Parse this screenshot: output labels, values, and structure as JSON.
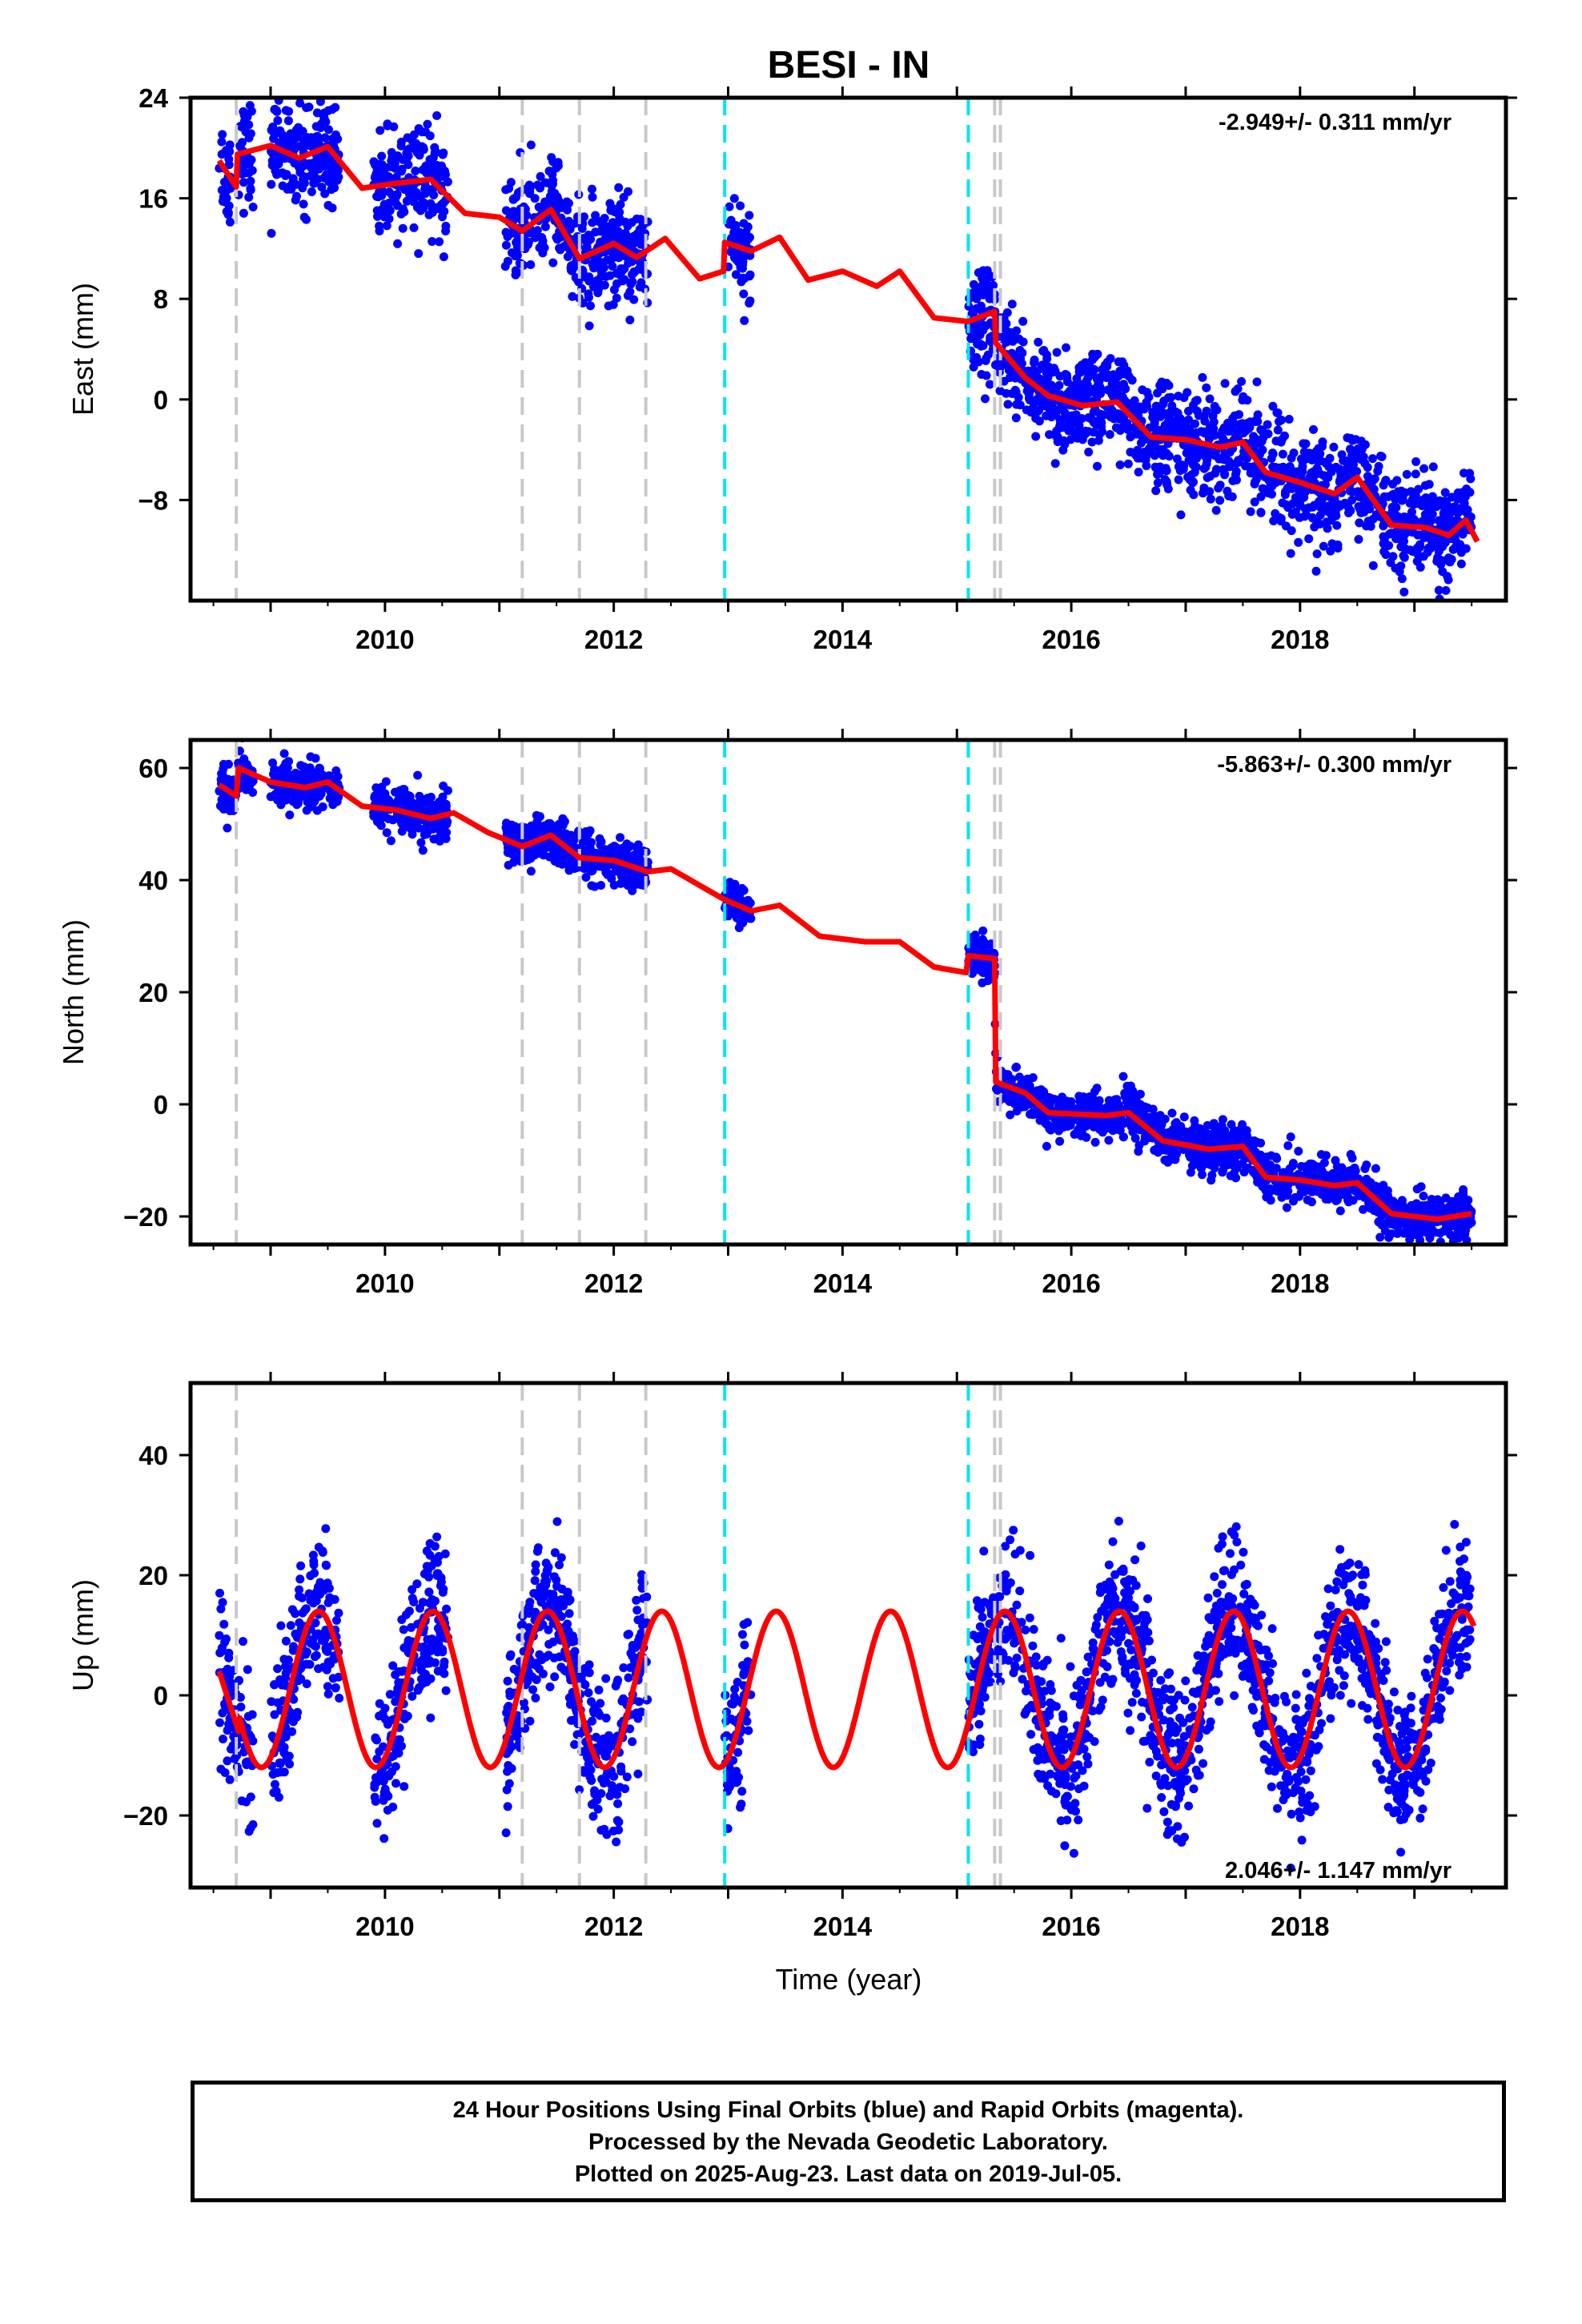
{
  "title": "BESI - IN",
  "x_axis_label": "Time (year)",
  "x_ticks": [
    "2010",
    "2012",
    "2014",
    "2016",
    "2018"
  ],
  "colors": {
    "data_points": "#0000ff",
    "model_line": "#ff0000",
    "equipment_change": "#c8c8c8",
    "earthquake": "#00e5ee",
    "frame": "#000000"
  },
  "footer": {
    "line1": "24 Hour Positions Using Final Orbits (blue) and Rapid Orbits (magenta).",
    "line2": "Processed by the Nevada Geodetic Laboratory.",
    "line3": "Plotted on 2025-Aug-23. Last data on 2019-Jul-05."
  },
  "chart_data": [
    {
      "type": "scatter",
      "ylabel": "East (mm)",
      "ylim": [
        -16,
        24
      ],
      "y_ticks": [
        "24",
        "16",
        "8",
        "0",
        "−8"
      ],
      "rate_label": "-2.949+/- 0.311 mm/yr",
      "xlim": [
        2008.3,
        2019.8
      ],
      "gray_lines": [
        2008.7,
        2011.2,
        2011.7,
        2012.28,
        2015.33,
        2015.38
      ],
      "cyan_lines": [
        2012.97,
        2015.1
      ],
      "data_segments": [
        [
          2008.55,
          2008.65
        ],
        [
          2008.72,
          2008.85
        ],
        [
          2009.0,
          2009.6
        ],
        [
          2009.9,
          2010.55
        ],
        [
          2011.05,
          2012.3
        ],
        [
          2013.0,
          2013.2
        ],
        [
          2015.1,
          2019.5
        ]
      ],
      "model": [
        [
          2008.55,
          19
        ],
        [
          2008.7,
          16.9
        ],
        [
          2008.71,
          19.5
        ],
        [
          2009.0,
          20.2
        ],
        [
          2009.25,
          19.2
        ],
        [
          2009.5,
          20.1
        ],
        [
          2009.8,
          16.8
        ],
        [
          2010.1,
          17.2
        ],
        [
          2010.4,
          17.5
        ],
        [
          2010.7,
          14.8
        ],
        [
          2011.0,
          14.5
        ],
        [
          2011.2,
          13.4
        ],
        [
          2011.45,
          15.1
        ],
        [
          2011.7,
          11.2
        ],
        [
          2012.0,
          12.4
        ],
        [
          2012.2,
          11.3
        ],
        [
          2012.45,
          12.8
        ],
        [
          2012.75,
          9.6
        ],
        [
          2012.96,
          10.2
        ],
        [
          2012.97,
          12.5
        ],
        [
          2013.2,
          11.8
        ],
        [
          2013.45,
          12.9
        ],
        [
          2013.7,
          9.5
        ],
        [
          2014.0,
          10.2
        ],
        [
          2014.3,
          9.0
        ],
        [
          2014.5,
          10.2
        ],
        [
          2014.8,
          6.5
        ],
        [
          2015.1,
          6.2
        ],
        [
          2015.33,
          7.0
        ],
        [
          2015.34,
          4.5
        ],
        [
          2015.6,
          1.7
        ],
        [
          2015.8,
          0.3
        ],
        [
          2016.1,
          -0.5
        ],
        [
          2016.4,
          -0.2
        ],
        [
          2016.7,
          -3.0
        ],
        [
          2017.0,
          -3.2
        ],
        [
          2017.3,
          -3.8
        ],
        [
          2017.5,
          -3.4
        ],
        [
          2017.7,
          -5.8
        ],
        [
          2018.0,
          -6.6
        ],
        [
          2018.3,
          -7.5
        ],
        [
          2018.5,
          -6.2
        ],
        [
          2018.8,
          -10.0
        ],
        [
          2019.1,
          -10.2
        ],
        [
          2019.3,
          -10.8
        ],
        [
          2019.45,
          -9.6
        ],
        [
          2019.55,
          -11.3
        ]
      ],
      "points_shape": {
        "base_start": 18.5,
        "rate": -2.9,
        "amp": 1.5,
        "noise": 2.0
      }
    },
    {
      "type": "scatter",
      "ylabel": "North (mm)",
      "ylim": [
        -25,
        65
      ],
      "y_ticks": [
        "60",
        "40",
        "20",
        "0",
        "−20"
      ],
      "rate_label": "-5.863+/- 0.300 mm/yr",
      "xlim": [
        2008.3,
        2019.8
      ],
      "gray_lines": [
        2008.7,
        2011.2,
        2011.7,
        2012.28,
        2015.33,
        2015.38
      ],
      "cyan_lines": [
        2012.97,
        2015.1
      ],
      "data_segments": [
        [
          2008.55,
          2008.85
        ],
        [
          2009.0,
          2009.6
        ],
        [
          2009.9,
          2010.55
        ],
        [
          2011.05,
          2012.3
        ],
        [
          2012.97,
          2013.2
        ],
        [
          2015.1,
          2019.5
        ]
      ],
      "model": [
        [
          2008.55,
          57
        ],
        [
          2008.7,
          55
        ],
        [
          2008.72,
          60
        ],
        [
          2009.0,
          57.5
        ],
        [
          2009.3,
          56.5
        ],
        [
          2009.5,
          57.5
        ],
        [
          2009.8,
          53.2
        ],
        [
          2010.1,
          52.5
        ],
        [
          2010.4,
          51
        ],
        [
          2010.6,
          52
        ],
        [
          2010.9,
          48.5
        ],
        [
          2011.2,
          46
        ],
        [
          2011.45,
          48
        ],
        [
          2011.7,
          44
        ],
        [
          2012.0,
          43.5
        ],
        [
          2012.3,
          41.5
        ],
        [
          2012.5,
          42
        ],
        [
          2012.97,
          36.5
        ],
        [
          2013.2,
          34.5
        ],
        [
          2013.45,
          35.5
        ],
        [
          2013.8,
          30
        ],
        [
          2014.2,
          29
        ],
        [
          2014.5,
          29
        ],
        [
          2014.8,
          24.5
        ],
        [
          2015.08,
          23.5
        ],
        [
          2015.1,
          26.5
        ],
        [
          2015.33,
          26
        ],
        [
          2015.34,
          4
        ],
        [
          2015.6,
          2
        ],
        [
          2015.8,
          -1.5
        ],
        [
          2016.3,
          -2
        ],
        [
          2016.5,
          -1.5
        ],
        [
          2016.8,
          -6.5
        ],
        [
          2017.2,
          -8
        ],
        [
          2017.5,
          -7.5
        ],
        [
          2017.7,
          -13
        ],
        [
          2018.0,
          -13.5
        ],
        [
          2018.3,
          -14.5
        ],
        [
          2018.5,
          -14
        ],
        [
          2018.8,
          -19.5
        ],
        [
          2019.2,
          -20.5
        ],
        [
          2019.5,
          -19.5
        ]
      ],
      "points_shape": {
        "noise": 2.0
      }
    },
    {
      "type": "scatter",
      "ylabel": "Up (mm)",
      "ylim": [
        -32,
        52
      ],
      "y_ticks": [
        "40",
        "20",
        "0",
        "−20"
      ],
      "rate_label": "2.046+/- 1.147 mm/yr",
      "xlim": [
        2008.3,
        2019.8
      ],
      "gray_lines": [
        2008.7,
        2011.2,
        2011.7,
        2012.28,
        2015.33,
        2015.38
      ],
      "cyan_lines": [
        2012.97,
        2015.1
      ],
      "data_segments": [
        [
          2008.55,
          2008.85
        ],
        [
          2009.0,
          2009.6
        ],
        [
          2009.9,
          2010.55
        ],
        [
          2011.05,
          2012.3
        ],
        [
          2012.97,
          2013.2
        ],
        [
          2015.1,
          2019.5
        ]
      ],
      "model_params": {
        "amp": 13.0,
        "phase_peak": 0.42,
        "offset": 1.0
      },
      "points_shape": {
        "noise": 6.0
      }
    }
  ]
}
